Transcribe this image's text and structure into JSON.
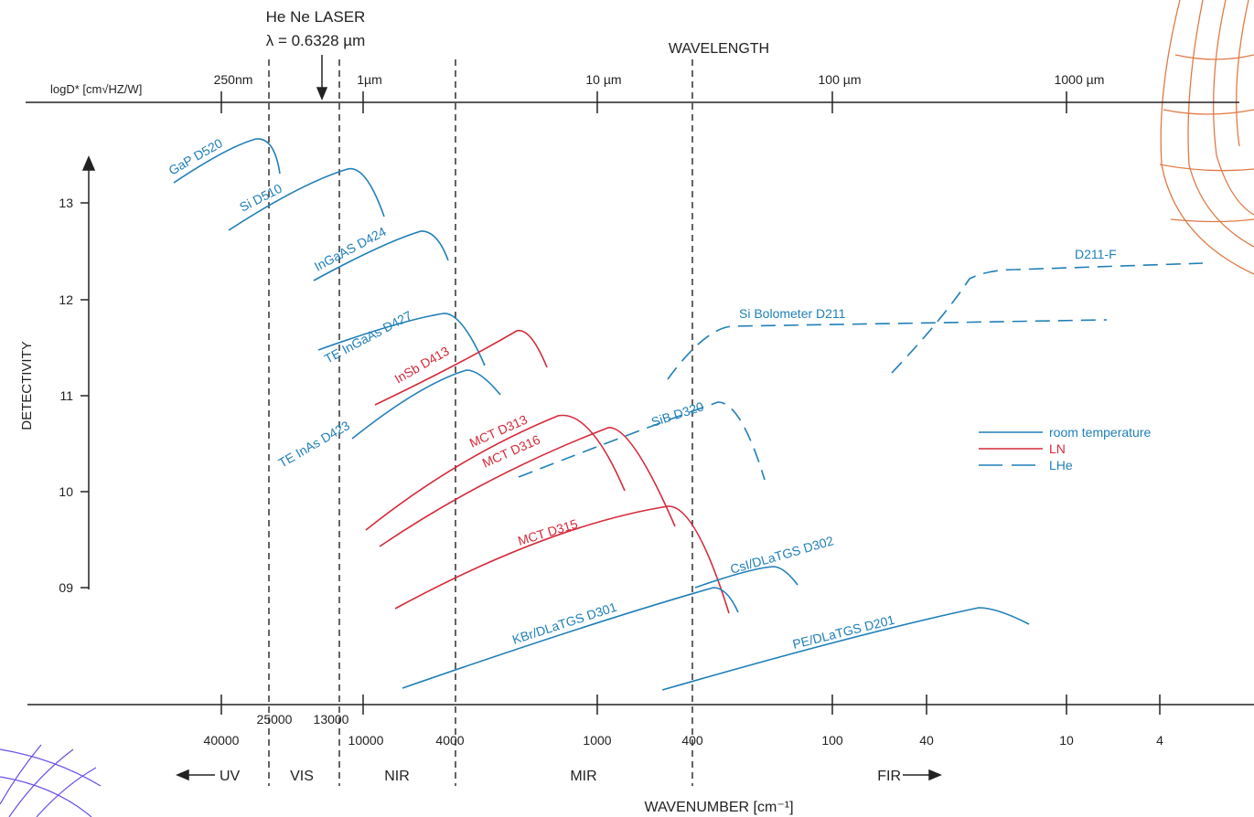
{
  "header": {
    "laser": "He Ne LASER",
    "lambda": "λ = 0.6328 µm",
    "wavelength": "WAVELENGTH",
    "unit": "logD* [cm√HZ/W]"
  },
  "top_ticks": [
    "250nm",
    "1µm",
    "10 µm",
    "100 µm",
    "1000 µm"
  ],
  "y_axis": {
    "title": "DETECTIVITY",
    "ticks": [
      "13",
      "12",
      "11",
      "10",
      "09"
    ]
  },
  "bottom_ticks": [
    "40000",
    "25000",
    "13000",
    "10000",
    "4000",
    "1000",
    "400",
    "100",
    "40",
    "10",
    "4"
  ],
  "regions": [
    "UV",
    "VIS",
    "NIR",
    "MIR",
    "FIR"
  ],
  "x_title": "WAVENUMBER [cm⁻¹]",
  "curves": [
    "GaP D520",
    "Si D510",
    "InGaAS D424",
    "TE InGaAs D427",
    "InSb D413",
    "TE InAs D423",
    "MCT D313",
    "MCT D316",
    "MCT D315",
    "SiB D320",
    "Si Bolometer D211",
    "D211-F",
    "KBr/DLaTGS D301",
    "CsI/DLaTGS D302",
    "PE/DLaTGS D201"
  ],
  "legend": [
    "room temperature",
    "LN",
    "LHe"
  ]
}
